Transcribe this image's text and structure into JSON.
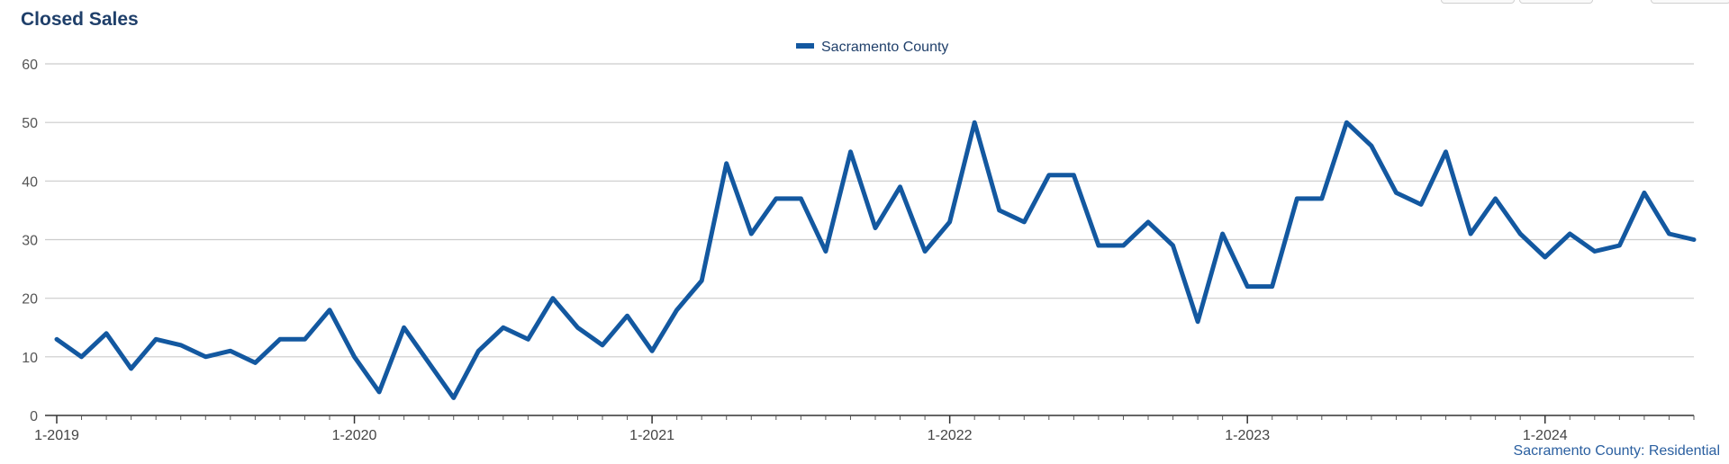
{
  "title": "Closed Sales",
  "source_label": "Sacramento County: Residential",
  "colors": {
    "series": "#1358a0",
    "grid": "#cccccc",
    "title": "#1f3f6a"
  },
  "chart_data": {
    "type": "line",
    "title": "Closed Sales",
    "xlabel": "",
    "ylabel": "",
    "ylim": [
      0,
      60
    ],
    "yticks": [
      0,
      10,
      20,
      30,
      40,
      50,
      60
    ],
    "x_tick_labels": [
      "1-2019",
      "1-2020",
      "1-2021",
      "1-2022",
      "1-2023",
      "1-2024"
    ],
    "grid": true,
    "legend": "top-center",
    "x_start": "1-2019",
    "x_end": "7-2024",
    "series": [
      {
        "name": "Sacramento County",
        "color": "#1358a0",
        "values": [
          13,
          10,
          14,
          8,
          13,
          12,
          10,
          11,
          9,
          13,
          13,
          18,
          10,
          4,
          15,
          9,
          3,
          11,
          15,
          13,
          20,
          15,
          12,
          17,
          11,
          18,
          23,
          43,
          31,
          37,
          37,
          28,
          45,
          32,
          39,
          28,
          33,
          50,
          35,
          33,
          41,
          41,
          29,
          29,
          33,
          29,
          16,
          31,
          22,
          22,
          37,
          37,
          50,
          46,
          38,
          36,
          45,
          31,
          37,
          31,
          27,
          31,
          28,
          29,
          38,
          31,
          30
        ]
      }
    ]
  }
}
